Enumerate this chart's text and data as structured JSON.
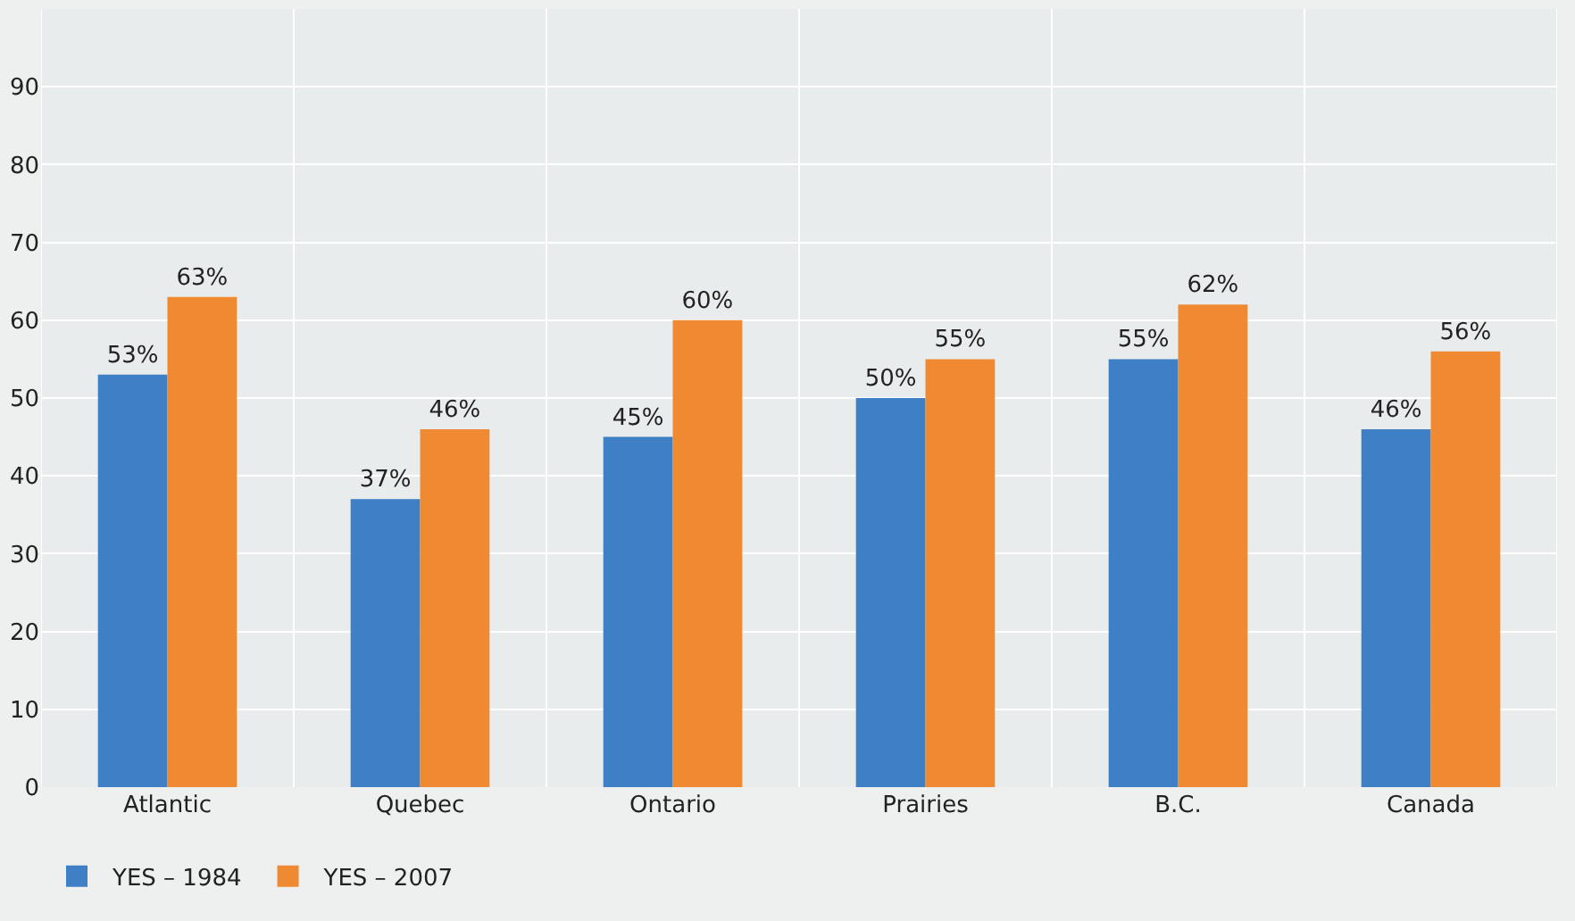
{
  "chart_data": {
    "type": "bar",
    "categories": [
      "Atlantic",
      "Quebec",
      "Ontario",
      "Prairies",
      "B.C.",
      "Canada"
    ],
    "series": [
      {
        "name": "YES – 1984",
        "color": "#3f7fc6",
        "values": [
          53,
          37,
          45,
          50,
          55,
          46
        ],
        "value_labels": [
          "53%",
          "37%",
          "45%",
          "50%",
          "55%",
          "46%"
        ]
      },
      {
        "name": "YES – 2007",
        "color": "#f08a32",
        "values": [
          63,
          46,
          60,
          55,
          62,
          56
        ],
        "value_labels": [
          "63%",
          "46%",
          "60%",
          "55%",
          "62%",
          "56%"
        ]
      }
    ],
    "ylim": [
      0,
      100
    ],
    "yticks": [
      0,
      10,
      20,
      30,
      40,
      50,
      60,
      70,
      80,
      90
    ],
    "grid": true,
    "legend": "bottom left"
  }
}
